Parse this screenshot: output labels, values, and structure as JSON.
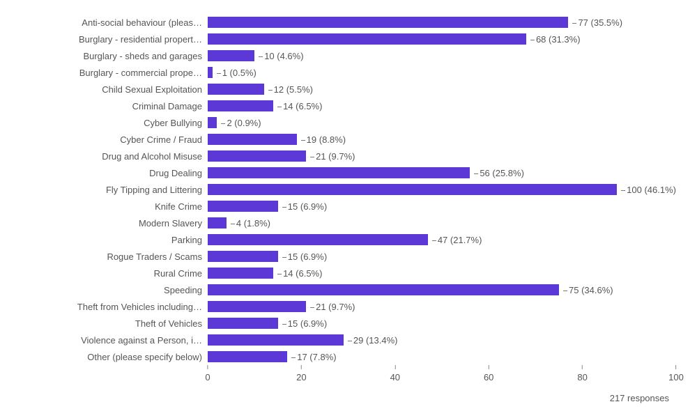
{
  "chart": {
    "type": "bar",
    "orientation": "horizontal",
    "x_max": 100,
    "bar_color": "#5c39d6",
    "label_color": "#555555",
    "value_color": "#555555",
    "background_color": "#ffffff",
    "label_fontsize": 13,
    "value_fontsize": 13,
    "axis_fontsize": 13,
    "axis_ticks": [
      0,
      20,
      40,
      60,
      80,
      100
    ],
    "items": [
      {
        "label": "Anti-social behaviour (pleas…",
        "count": 77,
        "pct": "35.5%"
      },
      {
        "label": "Burglary - residential propert…",
        "count": 68,
        "pct": "31.3%"
      },
      {
        "label": "Burglary - sheds and garages",
        "count": 10,
        "pct": "4.6%"
      },
      {
        "label": "Burglary - commercial prope…",
        "count": 1,
        "pct": "0.5%"
      },
      {
        "label": "Child Sexual Exploitation",
        "count": 12,
        "pct": "5.5%"
      },
      {
        "label": "Criminal Damage",
        "count": 14,
        "pct": "6.5%"
      },
      {
        "label": "Cyber Bullying",
        "count": 2,
        "pct": "0.9%"
      },
      {
        "label": "Cyber Crime / Fraud",
        "count": 19,
        "pct": "8.8%"
      },
      {
        "label": "Drug and Alcohol Misuse",
        "count": 21,
        "pct": "9.7%"
      },
      {
        "label": "Drug Dealing",
        "count": 56,
        "pct": "25.8%"
      },
      {
        "label": "Fly Tipping and Littering",
        "count": 100,
        "pct": "46.1%"
      },
      {
        "label": "Knife Crime",
        "count": 15,
        "pct": "6.9%"
      },
      {
        "label": "Modern Slavery",
        "count": 4,
        "pct": "1.8%"
      },
      {
        "label": "Parking",
        "count": 47,
        "pct": "21.7%"
      },
      {
        "label": "Rogue Traders / Scams",
        "count": 15,
        "pct": "6.9%"
      },
      {
        "label": "Rural Crime",
        "count": 14,
        "pct": "6.5%"
      },
      {
        "label": "Speeding",
        "count": 75,
        "pct": "34.6%"
      },
      {
        "label": "Theft from Vehicles including…",
        "count": 21,
        "pct": "9.7%"
      },
      {
        "label": "Theft of Vehicles",
        "count": 15,
        "pct": "6.9%"
      },
      {
        "label": "Violence against a Person, i…",
        "count": 29,
        "pct": "13.4%"
      },
      {
        "label": "Other (please specify below)",
        "count": 17,
        "pct": "7.8%"
      }
    ]
  },
  "footer_text": "217 responses"
}
